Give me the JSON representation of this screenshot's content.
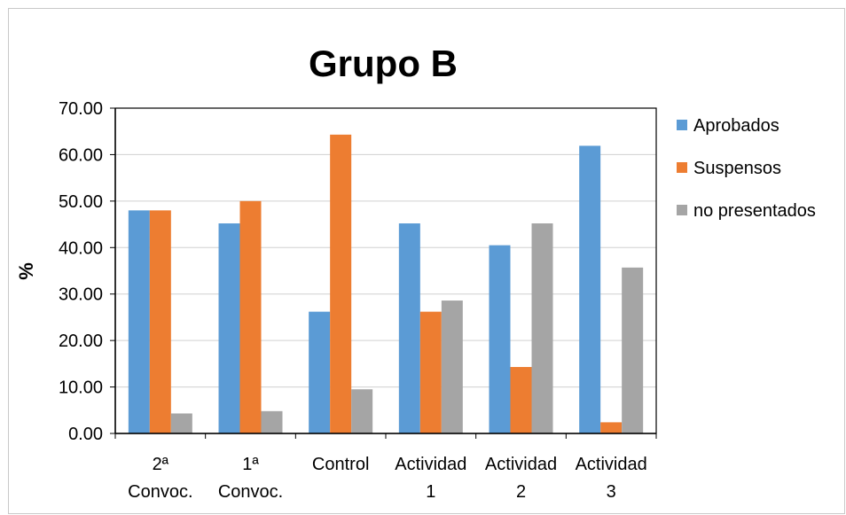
{
  "chart_data": {
    "type": "bar",
    "title": "Grupo B",
    "ylabel": "%",
    "xlabel": "",
    "ylim": [
      0,
      70
    ],
    "yticks": [
      "0.00",
      "10.00",
      "20.00",
      "30.00",
      "40.00",
      "50.00",
      "60.00",
      "70.00"
    ],
    "categories": [
      [
        "2ª",
        "Convoc."
      ],
      [
        "1ª",
        "Convoc."
      ],
      [
        "Control"
      ],
      [
        "Actividad",
        "1"
      ],
      [
        "Actividad",
        "2"
      ],
      [
        "Actividad",
        "3"
      ]
    ],
    "series": [
      {
        "name": "Aprobados",
        "color": "#5b9bd5",
        "values": [
          48.0,
          45.2,
          26.2,
          45.2,
          40.5,
          61.9
        ]
      },
      {
        "name": "Suspensos",
        "color": "#ed7d31",
        "values": [
          48.0,
          50.0,
          64.3,
          26.2,
          14.3,
          2.4
        ]
      },
      {
        "name": "no presentados",
        "color": "#a5a5a5",
        "values": [
          4.3,
          4.8,
          9.5,
          28.6,
          45.2,
          35.7
        ]
      }
    ],
    "grid": true,
    "legend": "right"
  }
}
